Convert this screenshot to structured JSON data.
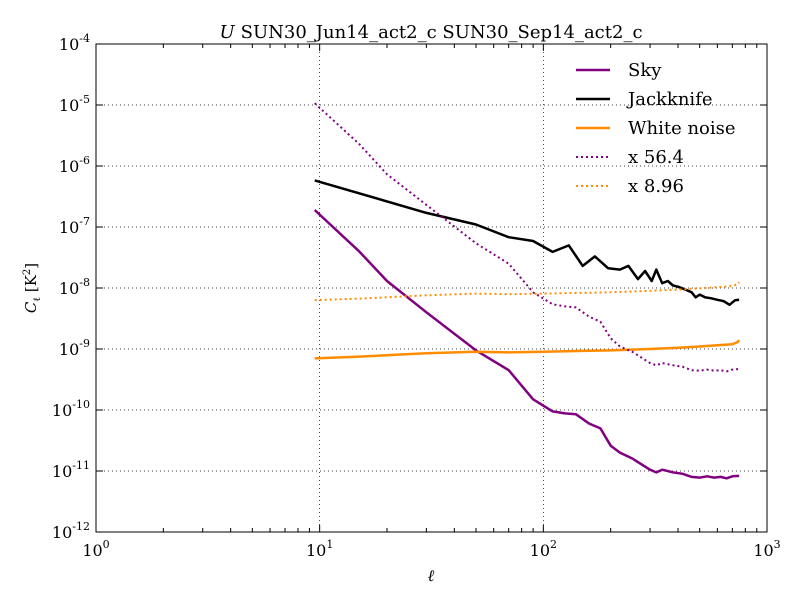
{
  "chart_data": {
    "type": "line",
    "title_prefix": "U",
    "title": "SUN30_Jun14_act2_c SUN30_Sep14_act2_c",
    "xlabel": "ℓ",
    "ylabel": {
      "main": "C",
      "sub": "ℓ",
      "unit_open": " [K",
      "unit_sup": "2",
      "unit_close": "]"
    },
    "x_scale": "log",
    "y_scale": "log",
    "xlim": [
      1,
      1000
    ],
    "ylim": [
      1e-12,
      0.0001
    ],
    "grid": true,
    "legend_position": "top-right",
    "x_ticks": [
      {
        "value": 1,
        "base": "10",
        "exp": "0"
      },
      {
        "value": 10,
        "base": "10",
        "exp": "1"
      },
      {
        "value": 100,
        "base": "10",
        "exp": "2"
      },
      {
        "value": 1000,
        "base": "10",
        "exp": "3"
      }
    ],
    "y_ticks": [
      {
        "value": 1e-12,
        "base": "10",
        "exp": "-12"
      },
      {
        "value": 1e-11,
        "base": "10",
        "exp": "-11"
      },
      {
        "value": 1e-10,
        "base": "10",
        "exp": "-10"
      },
      {
        "value": 1e-09,
        "base": "10",
        "exp": "-9"
      },
      {
        "value": 1e-08,
        "base": "10",
        "exp": "-8"
      },
      {
        "value": 1e-07,
        "base": "10",
        "exp": "-7"
      },
      {
        "value": 1e-06,
        "base": "10",
        "exp": "-6"
      },
      {
        "value": 1e-05,
        "base": "10",
        "exp": "-5"
      },
      {
        "value": 0.0001,
        "base": "10",
        "exp": "-4"
      }
    ],
    "series": [
      {
        "name": "Sky",
        "color": "#800080",
        "style": "solid",
        "points": [
          [
            9.5,
            1.9e-07
          ],
          [
            15,
            4e-08
          ],
          [
            20,
            1.3e-08
          ],
          [
            30,
            4e-09
          ],
          [
            50,
            9.5e-10
          ],
          [
            70,
            4.5e-10
          ],
          [
            90,
            1.5e-10
          ],
          [
            110,
            9.5e-11
          ],
          [
            125,
            8.8e-11
          ],
          [
            140,
            8.5e-11
          ],
          [
            160,
            6e-11
          ],
          [
            180,
            5e-11
          ],
          [
            200,
            2.6e-11
          ],
          [
            220,
            2e-11
          ],
          [
            250,
            1.6e-11
          ],
          [
            300,
            1.05e-11
          ],
          [
            320,
            9.5e-12
          ],
          [
            340,
            1.05e-11
          ],
          [
            380,
            9.5e-12
          ],
          [
            420,
            9e-12
          ],
          [
            460,
            8e-12
          ],
          [
            500,
            7.8e-12
          ],
          [
            540,
            8.2e-12
          ],
          [
            580,
            7.8e-12
          ],
          [
            620,
            8e-12
          ],
          [
            660,
            7.6e-12
          ],
          [
            700,
            8.2e-12
          ],
          [
            750,
            8.3e-12
          ]
        ]
      },
      {
        "name": "Jackknife",
        "color": "#000000",
        "style": "solid",
        "points": [
          [
            9.5,
            5.8e-07
          ],
          [
            30,
            1.7e-07
          ],
          [
            50,
            1.1e-07
          ],
          [
            70,
            6.8e-08
          ],
          [
            90,
            5.9e-08
          ],
          [
            110,
            3.9e-08
          ],
          [
            130,
            5e-08
          ],
          [
            150,
            2.3e-08
          ],
          [
            170,
            3.3e-08
          ],
          [
            195,
            2.1e-08
          ],
          [
            220,
            2e-08
          ],
          [
            240,
            2.3e-08
          ],
          [
            265,
            1.4e-08
          ],
          [
            285,
            1.9e-08
          ],
          [
            305,
            1.3e-08
          ],
          [
            320,
            2e-08
          ],
          [
            340,
            1.2e-08
          ],
          [
            360,
            1.3e-08
          ],
          [
            380,
            1.1e-08
          ],
          [
            400,
            1.05e-08
          ],
          [
            430,
            9.5e-09
          ],
          [
            460,
            8.5e-09
          ],
          [
            480,
            7e-09
          ],
          [
            500,
            7.8e-09
          ],
          [
            530,
            7e-09
          ],
          [
            560,
            6.8e-09
          ],
          [
            600,
            6.4e-09
          ],
          [
            640,
            6.1e-09
          ],
          [
            680,
            5.3e-09
          ],
          [
            720,
            6.3e-09
          ],
          [
            750,
            6.4e-09
          ]
        ]
      },
      {
        "name": "White noise",
        "color": "#ff8c00",
        "style": "solid",
        "points": [
          [
            9.5,
            7e-10
          ],
          [
            15,
            7.5e-10
          ],
          [
            30,
            8.5e-10
          ],
          [
            50,
            9e-10
          ],
          [
            70,
            8.8e-10
          ],
          [
            100,
            9e-10
          ],
          [
            150,
            9.3e-10
          ],
          [
            200,
            9.5e-10
          ],
          [
            300,
            1e-09
          ],
          [
            400,
            1.05e-09
          ],
          [
            500,
            1.1e-09
          ],
          [
            600,
            1.15e-09
          ],
          [
            700,
            1.2e-09
          ],
          [
            740,
            1.3e-09
          ],
          [
            750,
            1.4e-09
          ]
        ]
      },
      {
        "name": "x 56.4",
        "color": "#800080",
        "style": "dotted",
        "points": [
          [
            9.5,
            1.07e-05
          ],
          [
            15,
            2.3e-06
          ],
          [
            20,
            7.3e-07
          ],
          [
            30,
            2.3e-07
          ],
          [
            50,
            5.4e-08
          ],
          [
            70,
            2.5e-08
          ],
          [
            90,
            8.5e-09
          ],
          [
            110,
            5.4e-09
          ],
          [
            125,
            5e-09
          ],
          [
            140,
            4.8e-09
          ],
          [
            160,
            3.4e-09
          ],
          [
            180,
            2.8e-09
          ],
          [
            200,
            1.5e-09
          ],
          [
            220,
            1.1e-09
          ],
          [
            250,
            9e-10
          ],
          [
            300,
            5.9e-10
          ],
          [
            320,
            5.4e-10
          ],
          [
            340,
            5.9e-10
          ],
          [
            380,
            5.4e-10
          ],
          [
            420,
            5.1e-10
          ],
          [
            460,
            4.5e-10
          ],
          [
            500,
            4.4e-10
          ],
          [
            540,
            4.6e-10
          ],
          [
            580,
            4.4e-10
          ],
          [
            620,
            4.5e-10
          ],
          [
            660,
            4.3e-10
          ],
          [
            700,
            4.6e-10
          ],
          [
            750,
            4.7e-10
          ]
        ]
      },
      {
        "name": "x 8.96",
        "color": "#ff8c00",
        "style": "dotted",
        "points": [
          [
            9.5,
            6.3e-09
          ],
          [
            15,
            6.7e-09
          ],
          [
            30,
            7.6e-09
          ],
          [
            50,
            8.1e-09
          ],
          [
            70,
            7.9e-09
          ],
          [
            100,
            8.1e-09
          ],
          [
            150,
            8.3e-09
          ],
          [
            200,
            8.5e-09
          ],
          [
            300,
            9e-09
          ],
          [
            400,
            9.4e-09
          ],
          [
            500,
            9.9e-09
          ],
          [
            600,
            1.03e-08
          ],
          [
            700,
            1.08e-08
          ],
          [
            740,
            1.16e-08
          ],
          [
            750,
            1.25e-08
          ]
        ]
      }
    ]
  }
}
